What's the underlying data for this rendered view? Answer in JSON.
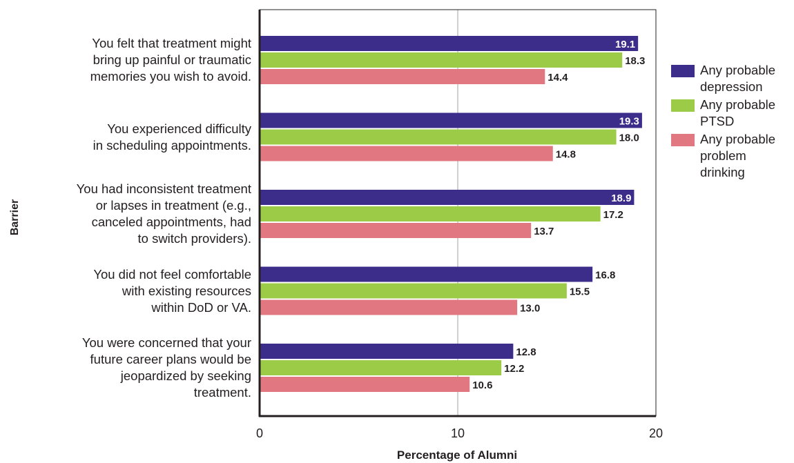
{
  "chart_data": {
    "type": "bar",
    "orientation": "horizontal",
    "categories": [
      [
        "You felt that treatment might",
        "bring up painful or traumatic",
        "memories you wish to avoid."
      ],
      [
        "You experienced difficulty",
        "in scheduling appointments."
      ],
      [
        "You had inconsistent treatment",
        "or lapses in treatment (e.g.,",
        "canceled appointments, had",
        "to switch providers)."
      ],
      [
        "You did not feel comfortable",
        "with existing resources",
        "within DoD or VA."
      ],
      [
        "You were concerned that your",
        "future career plans would be",
        "jeopardized by seeking",
        "treatment."
      ]
    ],
    "series": [
      {
        "name": [
          "Any probable",
          "depression"
        ],
        "color": "#3c2d8a",
        "values": [
          19.1,
          19.3,
          18.9,
          16.8,
          12.8
        ]
      },
      {
        "name": [
          "Any probable",
          "PTSD"
        ],
        "color": "#9ccb47",
        "values": [
          18.3,
          18.0,
          17.2,
          15.5,
          12.2
        ]
      },
      {
        "name": [
          "Any probable",
          "problem",
          "drinking"
        ],
        "color": "#e17881",
        "values": [
          14.4,
          14.8,
          13.7,
          13.0,
          10.6
        ]
      }
    ],
    "value_labels": [
      [
        "19.1",
        "19.3",
        "18.9",
        "16.8",
        "12.8"
      ],
      [
        "18.3",
        "18.0",
        "17.2",
        "15.5",
        "12.2"
      ],
      [
        "14.4",
        "14.8",
        "13.7",
        "13.0",
        "10.6"
      ]
    ],
    "xlabel": "Percentage of Alumni",
    "ylabel": "Barrier",
    "xlim": [
      0,
      20
    ],
    "xticks": [
      "0",
      "10",
      "20"
    ],
    "grid": "vertical line at 10",
    "legend": "right"
  }
}
